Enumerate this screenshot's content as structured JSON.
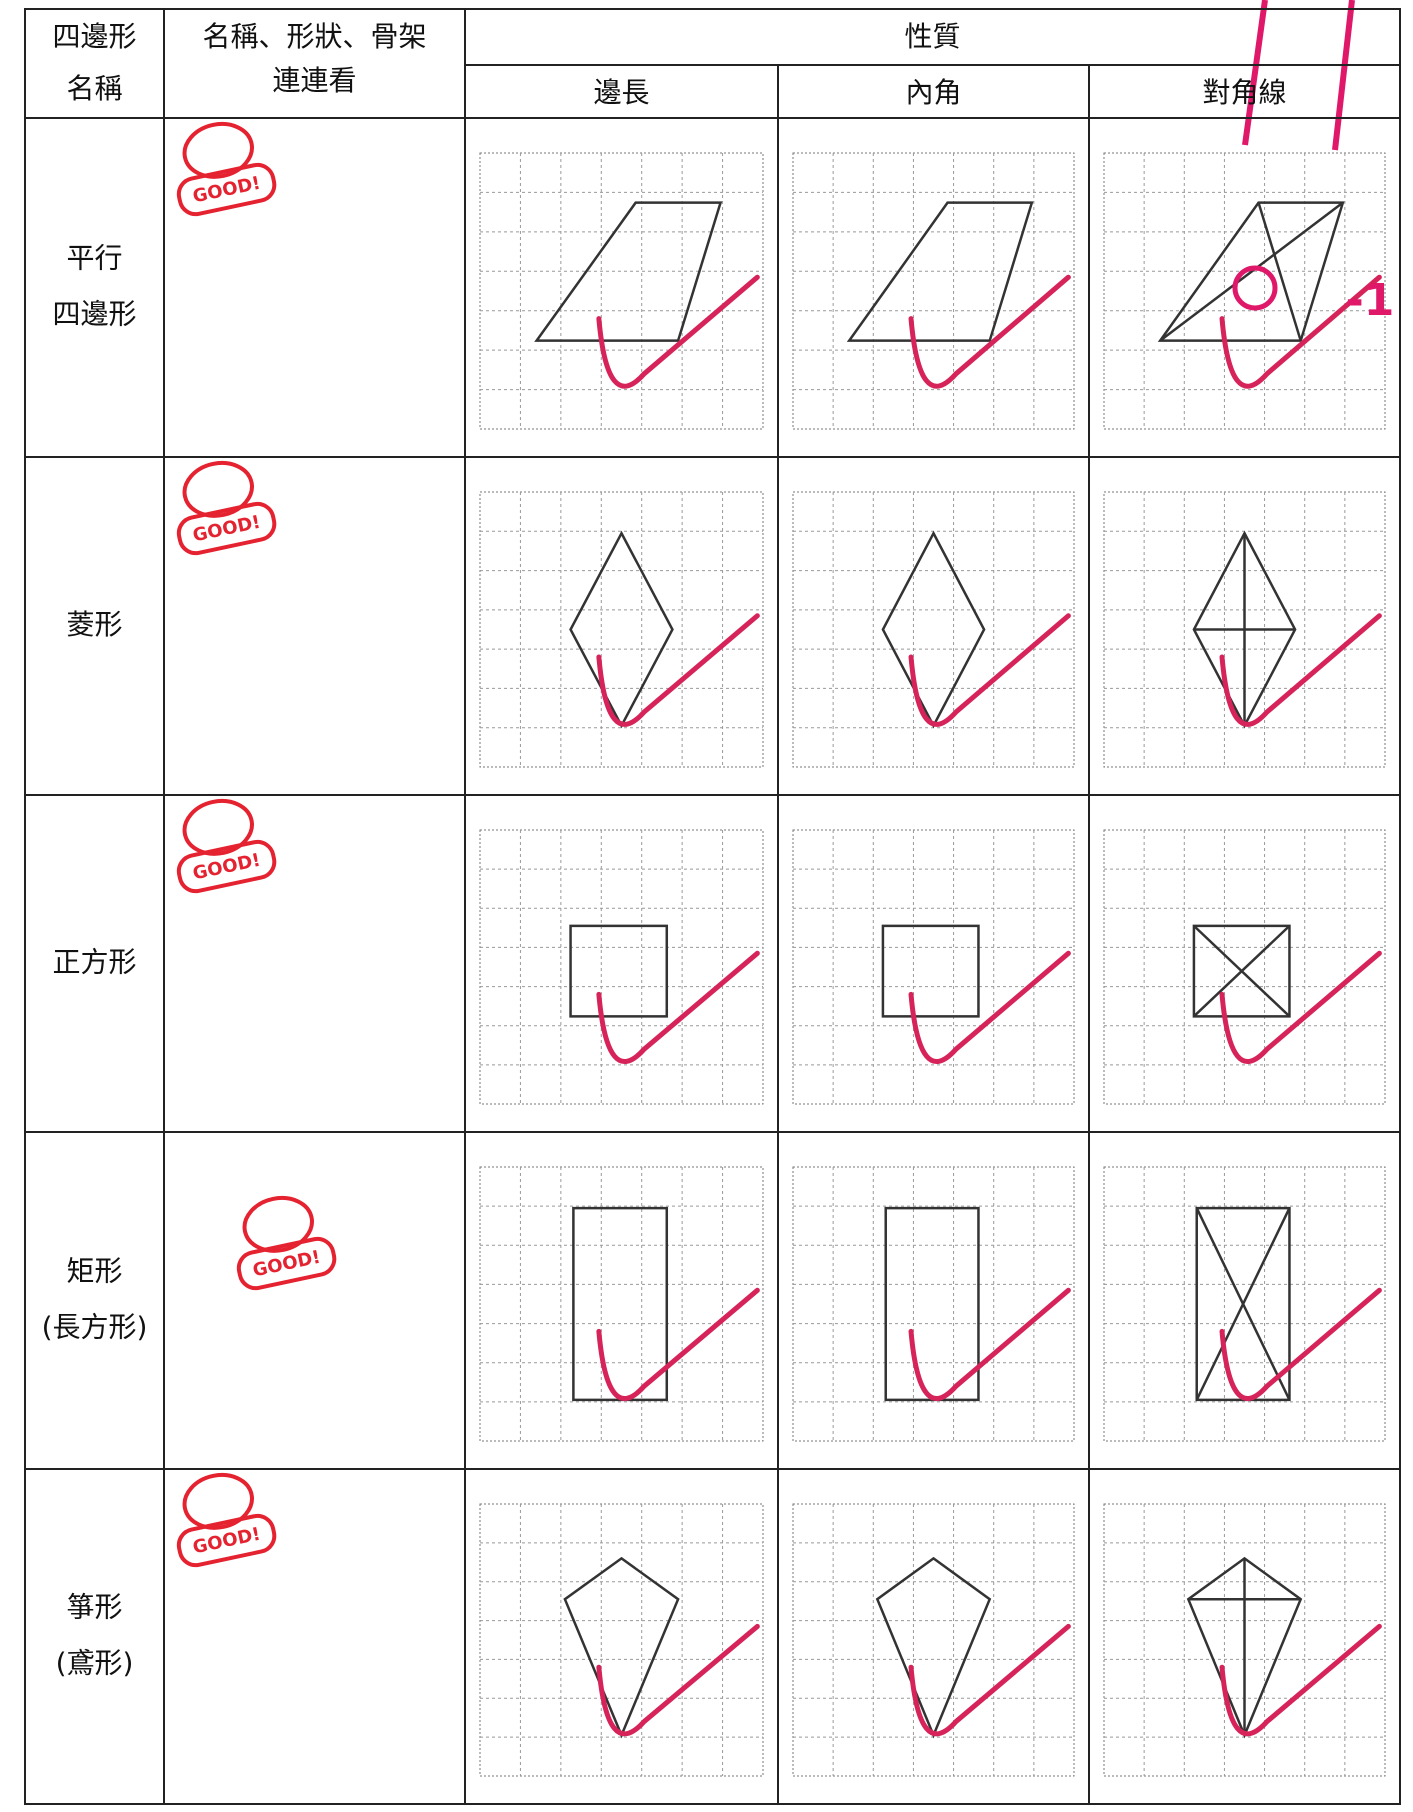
{
  "header": {
    "name": [
      "四邊形",
      "名稱"
    ],
    "match": [
      "名稱、形狀、骨架",
      "連連看"
    ],
    "properties": "性質",
    "columns": [
      "邊長",
      "內角",
      "對角線"
    ]
  },
  "rows": [
    {
      "name": [
        "平行",
        "四邊形"
      ],
      "stamp": "GOOD!",
      "annotation": "-1"
    },
    {
      "name": [
        "菱形"
      ],
      "stamp": "GOOD!"
    },
    {
      "name": [
        "正方形"
      ],
      "stamp": "GOOD!"
    },
    {
      "name": [
        "矩形",
        "(長方形)"
      ],
      "stamp": "GOOD!"
    },
    {
      "name": [
        "箏形",
        "(鳶形)"
      ],
      "stamp": "GOOD!"
    }
  ]
}
